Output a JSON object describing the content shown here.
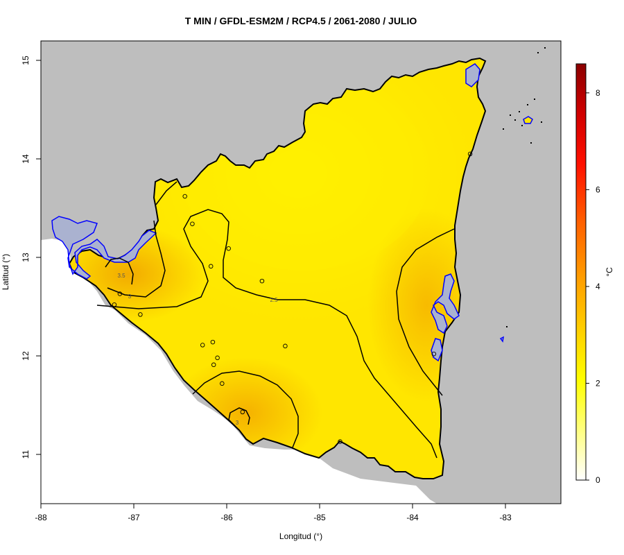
{
  "title": "T MIN / GFDL-ESM2M / RCP4.5 / 2061-2080 / JULIO",
  "axes": {
    "xlabel": "Longitud (°)",
    "ylabel": "Latitud (°)",
    "xticks": [
      "-88",
      "-87",
      "-86",
      "-85",
      "-84",
      "-83"
    ],
    "yticks": [
      "11",
      "12",
      "13",
      "14",
      "15"
    ]
  },
  "colorbar": {
    "unit": "°C",
    "ticks": [
      "0",
      "2",
      "4",
      "6",
      "8"
    ],
    "range": [
      0,
      8.6
    ]
  },
  "contour_labels": [
    "3.5",
    "3",
    "2.5",
    "3"
  ],
  "colors": {
    "background_land": "#bebebe",
    "country_fill_warm": "#f2a000",
    "country_fill_mid": "#ffd000",
    "country_fill_cool": "#ffff00",
    "water": "#aab2d0",
    "water_outline": "#0000ff",
    "contour": "#000000"
  },
  "chart_data": {
    "type": "heatmap",
    "title": "T MIN / GFDL-ESM2M / RCP4.5 / 2061-2080 / JULIO",
    "xlabel": "Longitud (°)",
    "ylabel": "Latitud (°)",
    "xlim": [
      -88,
      -82.4
    ],
    "ylim": [
      10.5,
      15.2
    ],
    "value_range": [
      0,
      8.6
    ],
    "contour_levels": [
      2.5,
      3,
      3.5
    ],
    "stations": [
      {
        "lon": -86.45,
        "lat": 13.62
      },
      {
        "lon": -86.37,
        "lat": 13.34
      },
      {
        "lon": -85.98,
        "lat": 13.09
      },
      {
        "lon": -86.17,
        "lat": 12.91
      },
      {
        "lon": -85.62,
        "lat": 12.76
      },
      {
        "lon": -87.15,
        "lat": 12.63
      },
      {
        "lon": -87.21,
        "lat": 12.52
      },
      {
        "lon": -86.93,
        "lat": 12.42
      },
      {
        "lon": -86.15,
        "lat": 12.14
      },
      {
        "lon": -86.26,
        "lat": 12.11
      },
      {
        "lon": -85.37,
        "lat": 12.1
      },
      {
        "lon": -86.1,
        "lat": 11.98
      },
      {
        "lon": -86.14,
        "lat": 11.91
      },
      {
        "lon": -86.05,
        "lat": 11.72
      },
      {
        "lon": -85.83,
        "lat": 11.43
      },
      {
        "lon": -84.78,
        "lat": 11.13
      },
      {
        "lon": -83.77,
        "lat": 12.02
      },
      {
        "lon": -83.38,
        "lat": 14.05
      }
    ]
  }
}
